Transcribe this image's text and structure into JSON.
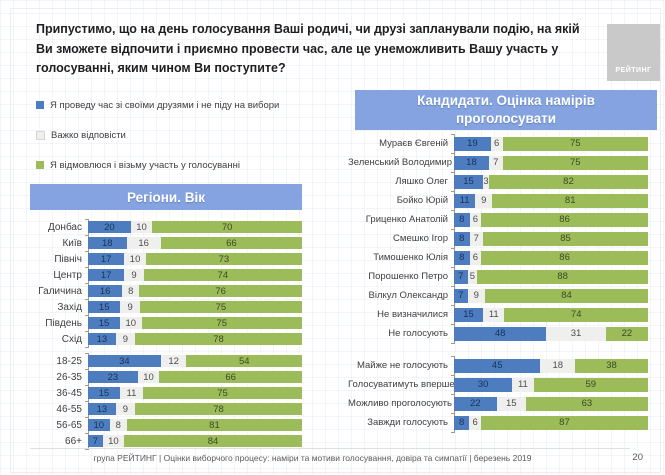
{
  "title": "Припустимо, що на день голосування Ваші родичі, чи друзі запланували подію, на якій Ви зможете відпочити і приємно провести час, але це унеможливить Вашу участь у голосуванні, яким чином Ви поступите?",
  "logo": "РЕЙТИНГ",
  "colors": {
    "bar_blue": "#4e7dbf",
    "bar_gray": "#efefed",
    "bar_green": "#9cbb59",
    "header_bg": "#84a3e0"
  },
  "legend": [
    {
      "label": "Я проведу час зі своїми друзями і не піду на вибори",
      "color": "#4e7dbf"
    },
    {
      "label": "Важко відповісти",
      "color": "#efefed"
    },
    {
      "label": "Я відмовлюся і візьму участь у голосуванні",
      "color": "#9cbb59"
    }
  ],
  "chart_data": [
    {
      "type": "bar",
      "orientation": "horizontal",
      "stacked": true,
      "unit": "%",
      "xlim": [
        0,
        100
      ],
      "title": "Регіони. Вік",
      "series_names": [
        "Я проведу час зі своїми друзями і не піду на вибори",
        "Важко відповісти",
        "Я відмовлюся і візьму участь у голосуванні"
      ],
      "groups": [
        {
          "rows": [
            {
              "label": "Донбас",
              "values": [
                20,
                10,
                70
              ]
            },
            {
              "label": "Київ",
              "values": [
                18,
                16,
                66
              ]
            },
            {
              "label": "Північ",
              "values": [
                17,
                10,
                73
              ]
            },
            {
              "label": "Центр",
              "values": [
                17,
                9,
                74
              ]
            },
            {
              "label": "Галичина",
              "values": [
                16,
                8,
                76
              ]
            },
            {
              "label": "Захід",
              "values": [
                15,
                9,
                75
              ]
            },
            {
              "label": "Південь",
              "values": [
                15,
                10,
                75
              ]
            },
            {
              "label": "Схід",
              "values": [
                13,
                9,
                78
              ]
            }
          ]
        },
        {
          "rows": [
            {
              "label": "18-25",
              "values": [
                34,
                12,
                54
              ]
            },
            {
              "label": "26-35",
              "values": [
                23,
                10,
                66
              ]
            },
            {
              "label": "36-45",
              "values": [
                15,
                11,
                75
              ]
            },
            {
              "label": "46-55",
              "values": [
                13,
                9,
                78
              ]
            },
            {
              "label": "56-65",
              "values": [
                10,
                8,
                81
              ]
            },
            {
              "label": "66+",
              "values": [
                7,
                10,
                84
              ]
            }
          ]
        }
      ]
    },
    {
      "type": "bar",
      "orientation": "horizontal",
      "stacked": true,
      "unit": "%",
      "xlim": [
        0,
        100
      ],
      "title": "Кандидати. Оцінка намірів проголосувати",
      "series_names": [
        "Я проведу час зі своїми друзями і не піду на вибори",
        "Важко відповісти",
        "Я відмовлюся і візьму участь у голосуванні"
      ],
      "groups": [
        {
          "rows": [
            {
              "label": "Мураєв Євгеній",
              "values": [
                19,
                6,
                75
              ]
            },
            {
              "label": "Зеленський Володимир",
              "values": [
                18,
                7,
                75
              ]
            },
            {
              "label": "Ляшко Олег",
              "values": [
                15,
                3,
                82
              ]
            },
            {
              "label": "Бойко Юрій",
              "values": [
                11,
                9,
                81
              ]
            },
            {
              "label": "Гриценко Анатолій",
              "values": [
                8,
                6,
                86
              ]
            },
            {
              "label": "Смешко Ігор",
              "values": [
                8,
                7,
                85
              ]
            },
            {
              "label": "Тимошенко Юлія",
              "values": [
                8,
                6,
                86
              ]
            },
            {
              "label": "Порошенко Петро",
              "values": [
                7,
                5,
                88
              ]
            },
            {
              "label": "Вілкул Олександр",
              "values": [
                7,
                9,
                84
              ]
            },
            {
              "label": "Не визначилися",
              "values": [
                15,
                11,
                74
              ]
            },
            {
              "label": "Не голосують",
              "values": [
                48,
                31,
                22
              ]
            }
          ]
        },
        {
          "rows": [
            {
              "label": "Майже не голосують",
              "values": [
                45,
                18,
                38
              ]
            },
            {
              "label": "Голосуватимуть вперше",
              "values": [
                30,
                11,
                59
              ]
            },
            {
              "label": "Можливо проголосують",
              "values": [
                22,
                15,
                63
              ]
            },
            {
              "label": "Завжди голосують",
              "values": [
                8,
                6,
                87
              ]
            }
          ]
        }
      ]
    }
  ],
  "footer": {
    "text": "група РЕЙТИНГ | Оцінки виборчого процесу: наміри та мотиви голосування, довіра та симпатії | березень 2019",
    "page": "20"
  }
}
